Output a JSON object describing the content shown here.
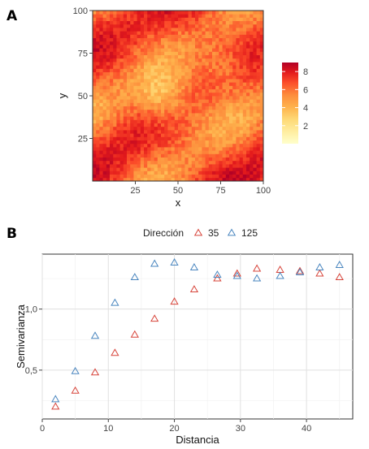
{
  "panels": {
    "a_label": "A",
    "b_label": "B"
  },
  "colors": {
    "dir35": "#d7443a",
    "dir125": "#4a86bf",
    "scale": [
      "#ffffcc",
      "#ffeda0",
      "#fed976",
      "#feb24c",
      "#fd8d3c",
      "#fc4e2a",
      "#e31a1c",
      "#b10026"
    ]
  },
  "chart_data": [
    {
      "type": "heatmap",
      "xlabel": "x",
      "ylabel": "y",
      "xlim": [
        0,
        100
      ],
      "ylim": [
        0,
        100
      ],
      "x_ticks": [
        25,
        50,
        75,
        100
      ],
      "y_ticks": [
        25,
        50,
        75,
        100
      ],
      "colorbar": {
        "range": [
          0,
          9
        ],
        "ticks": [
          2,
          4,
          6,
          8
        ]
      },
      "pattern": "anisotropic random field, stripes elongated along 35 degrees",
      "grid": false
    },
    {
      "type": "scatter",
      "xlabel": "Distancia",
      "ylabel": "Semivarianza",
      "xlim": [
        0,
        47
      ],
      "ylim": [
        0.1,
        1.45
      ],
      "x_ticks": [
        0,
        10,
        20,
        30,
        40
      ],
      "y_ticks": [
        0.5,
        1.0
      ],
      "y_tick_labels": [
        "0,5",
        "1,0"
      ],
      "legend": {
        "title": "Dirección",
        "position": "top"
      },
      "grid": true,
      "marker": "open-triangle",
      "series": [
        {
          "name": "35",
          "x": [
            2,
            5,
            8,
            11,
            14,
            17,
            20,
            23,
            26.5,
            29.5,
            32.5,
            36,
            39,
            42,
            45
          ],
          "y": [
            0.2,
            0.33,
            0.48,
            0.64,
            0.79,
            0.92,
            1.06,
            1.16,
            1.25,
            1.29,
            1.33,
            1.32,
            1.31,
            1.29,
            1.26
          ]
        },
        {
          "name": "125",
          "x": [
            2,
            5,
            8,
            11,
            14,
            17,
            20,
            23,
            26.5,
            29.5,
            32.5,
            36,
            39,
            42,
            45
          ],
          "y": [
            0.26,
            0.49,
            0.78,
            1.05,
            1.26,
            1.37,
            1.38,
            1.34,
            1.28,
            1.27,
            1.25,
            1.27,
            1.3,
            1.34,
            1.36
          ]
        }
      ]
    }
  ]
}
